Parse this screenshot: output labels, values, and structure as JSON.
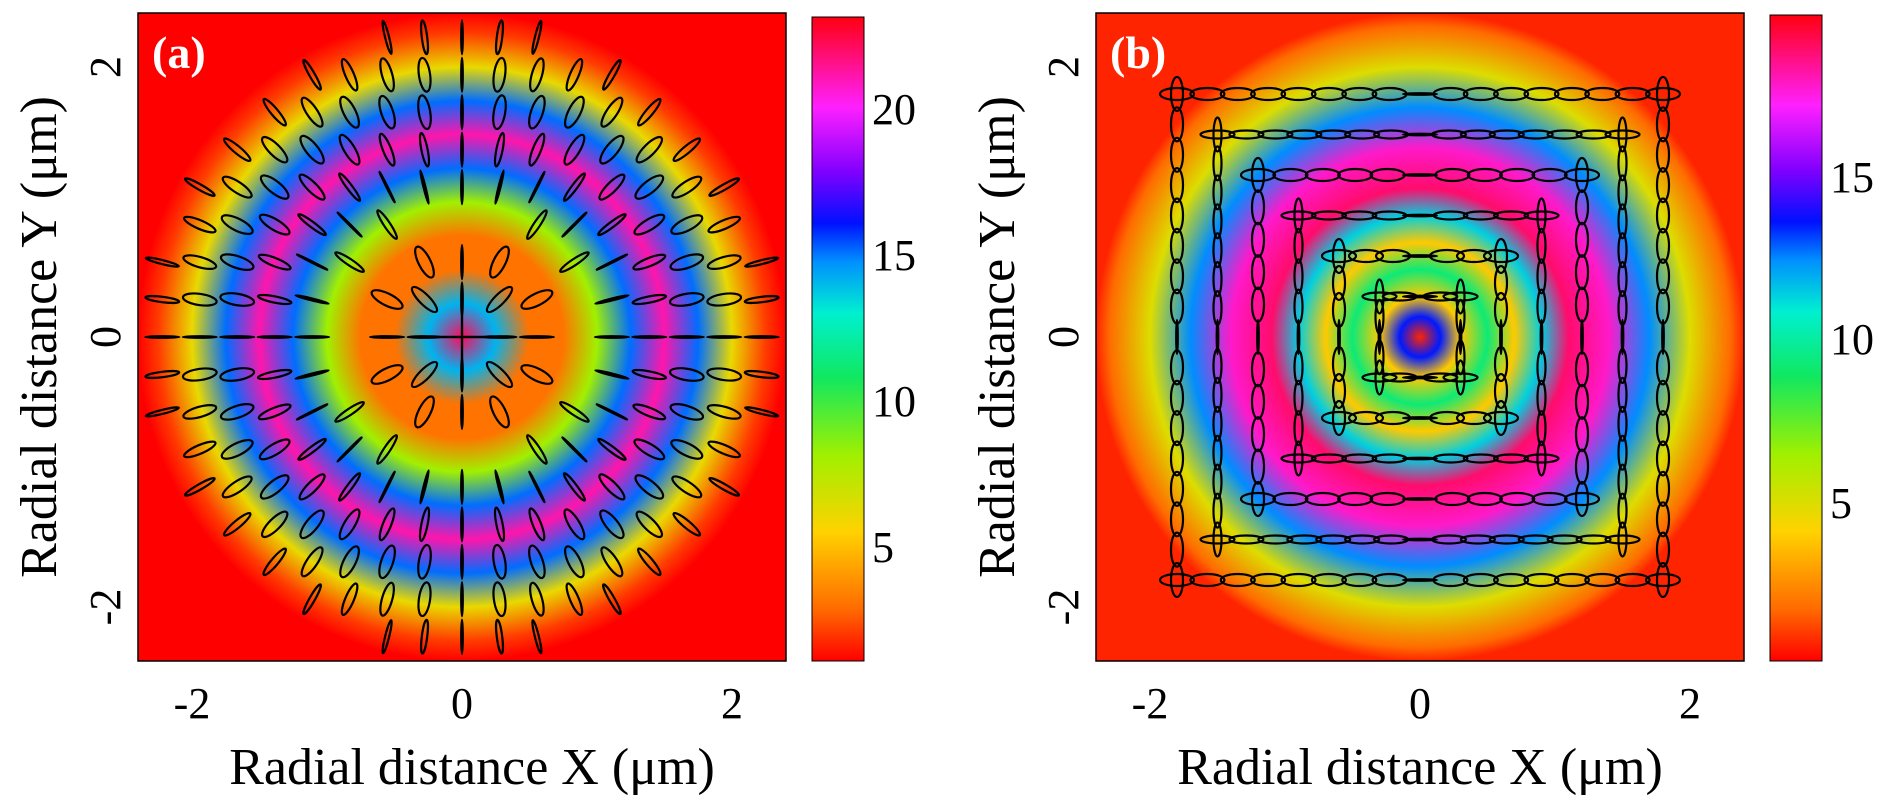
{
  "chart_data": [
    {
      "type": "heatmap",
      "panel_label": "(a)",
      "xlabel": "Radial distance X (μm)",
      "ylabel": "Radial distance Y (μm)",
      "xlim": [
        -2.4,
        2.4
      ],
      "ylim": [
        -2.4,
        2.4
      ],
      "xticks": [
        -2,
        0,
        2
      ],
      "yticks": [
        -2,
        0,
        2
      ],
      "x_tick_labels": [
        "-2",
        "0",
        "2"
      ],
      "y_tick_labels": [
        "-2",
        "0",
        "2"
      ],
      "colorbar": {
        "range": [
          1,
          23
        ],
        "ticks": [
          5,
          10,
          15,
          20
        ],
        "tick_labels": [
          "5",
          "10",
          "15",
          "20"
        ]
      },
      "rings": {
        "radius_um": [
          0.0,
          0.25,
          0.5,
          0.75,
          1.0,
          1.25,
          1.5,
          1.75,
          2.0,
          2.25,
          2.4
        ],
        "value": [
          22,
          14,
          3,
          3,
          8,
          15,
          21,
          15,
          6,
          2,
          1
        ]
      },
      "polarization_grid": {
        "pattern": "azimuthal-radial",
        "ring_radii_um": [
          0.5,
          1.0,
          1.5,
          2.0
        ]
      }
    },
    {
      "type": "heatmap",
      "panel_label": "(b)",
      "xlabel": "Radial distance X (μm)",
      "ylabel": "Radial distance Y (μm)",
      "xlim": [
        -2.4,
        2.4
      ],
      "ylim": [
        -2.4,
        2.4
      ],
      "xticks": [
        -2,
        0,
        2
      ],
      "yticks": [
        -2,
        0,
        2
      ],
      "x_tick_labels": [
        "-2",
        "0",
        "2"
      ],
      "y_tick_labels": [
        "-2",
        "0",
        "2"
      ],
      "colorbar": {
        "range": [
          0.5,
          19
        ],
        "ticks": [
          5,
          10,
          15
        ],
        "tick_labels": [
          "5",
          "10",
          "15"
        ]
      },
      "rings": {
        "radius_um": [
          0.0,
          0.15,
          0.3,
          0.5,
          0.7,
          0.9,
          1.1,
          1.4,
          1.7,
          2.0,
          2.3,
          2.4
        ],
        "value": [
          1,
          13,
          4,
          9,
          4,
          11,
          18,
          17,
          12,
          5,
          2,
          1
        ]
      },
      "polarization_grid": {
        "pattern": "square-concentric",
        "ring_radii_um": [
          0.3,
          0.6,
          0.9,
          1.2,
          1.5,
          1.8
        ]
      }
    }
  ]
}
